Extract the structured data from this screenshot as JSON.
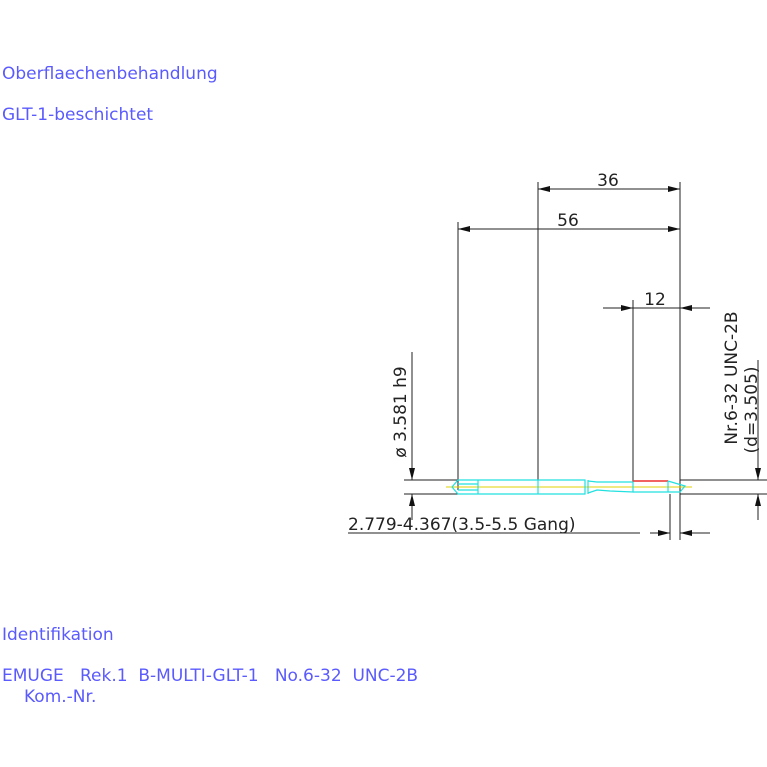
{
  "notes": {
    "surface_heading": "Oberflaechenbehandlung",
    "surface_value": "GLT-1-beschichtet",
    "identification_heading": "Identifikation",
    "identification_line": "EMUGE   Rek.1  B-MULTI-GLT-1   No.6-32  UNC-2B",
    "commission_label": "Kom.-Nr."
  },
  "dimensions": {
    "thread_length": "36",
    "total_length": "56",
    "chamfer_length": "12",
    "shank_diameter": "ø 3.581 h9",
    "thread_spec": "Nr.6-32 UNC-2B",
    "thread_diameter": "(d=3.505)",
    "core_range": "2.779-4.367(3.5-5.5 Gang)"
  },
  "colors": {
    "text": "#5a5aff",
    "tool_outline": "#22e0e0",
    "chamfer": "#ff3030",
    "centerline": "#e0d000",
    "dimension": "#222222"
  }
}
